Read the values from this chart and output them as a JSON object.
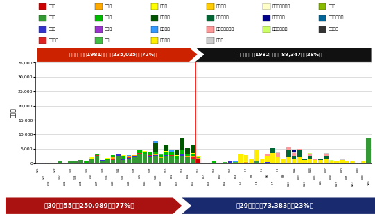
{
  "title_old": "旧耐震基準（1981年以前）235,025㎡（72%）",
  "title_new": "新耐震基準（1982年以降）89,347㎡（28%）",
  "bottom_old": "築30年～55年　250,989㎡（77%）",
  "bottom_new": "築29年以下　73,383㎡（23%）",
  "ylabel": "（㎡）",
  "ylim": 35000,
  "yticks": [
    0,
    5000,
    10000,
    15000,
    20000,
    25000,
    30000,
    35000
  ],
  "n_bars": 63,
  "separator_idx": 30,
  "colors": {
    "市庁舎": "#CC0000",
    "小学校": "#339933",
    "公民館": "#3333CC",
    "消防施設": "#DD2222",
    "保育所": "#FFAA00",
    "中学校": "#00BB00",
    "図書館": "#9933CC",
    "公園": "#44BB44",
    "幼稚園": "#FFFF00",
    "高等学校": "#005500",
    "市民会館": "#3399FF",
    "市営住宅": "#FFEE00",
    "こども園": "#FFCC00",
    "教育施設等": "#006633",
    "福祉・保健施設": "#FF9999",
    "その他": "#CCCCCC",
    "こどもセンター": "#FFFFCC",
    "青少年施設": "#000088",
    "スポーツ施設": "#CCFF66",
    "児童会": "#88BB00",
    "生涯学習施設": "#006699",
    "勤労会館": "#333333"
  },
  "legend_items": [
    [
      "市庁舎",
      "#CC0000"
    ],
    [
      "保育所",
      "#FFAA00"
    ],
    [
      "幼稚園",
      "#FFFF00"
    ],
    [
      "こども園",
      "#FFCC00"
    ],
    [
      "こどもセンター",
      "#FFFFCC"
    ],
    [
      "児童会",
      "#88BB00"
    ],
    [
      "小学校",
      "#339933"
    ],
    [
      "中学校",
      "#00BB00"
    ],
    [
      "高等学校",
      "#005500"
    ],
    [
      "教育施設等",
      "#006633"
    ],
    [
      "青少年施設",
      "#000088"
    ],
    [
      "生涯学習施設",
      "#006699"
    ],
    [
      "公民館",
      "#3333CC"
    ],
    [
      "図書館",
      "#9933CC"
    ],
    [
      "市民会館",
      "#3399FF"
    ],
    [
      "福祉・保健施設",
      "#FF9999"
    ],
    [
      "スポーツ施設",
      "#CCFF66"
    ],
    [
      "勤労会館",
      "#333333"
    ],
    [
      "消防施設",
      "#DD2222"
    ],
    [
      "公園",
      "#44BB44"
    ],
    [
      "市営住宅",
      "#FFEE00"
    ],
    [
      "その他",
      "#CCCCCC"
    ]
  ],
  "bar_data": {
    "市庁舎": [
      0,
      0,
      0,
      0,
      0,
      0,
      0,
      0,
      0,
      0,
      0,
      0,
      0,
      0,
      0,
      0,
      0,
      0,
      0,
      0,
      0,
      0,
      0,
      0,
      0,
      0,
      0,
      0,
      0,
      0,
      1500,
      0,
      0,
      0,
      0,
      0,
      0,
      0,
      0,
      0,
      0,
      0,
      0,
      0,
      0,
      0,
      0,
      0,
      0,
      0,
      0,
      0,
      0,
      0,
      0,
      0,
      0,
      0,
      0,
      0,
      0,
      0,
      0
    ],
    "小学校": [
      0,
      0,
      0,
      0,
      800,
      0,
      500,
      700,
      1000,
      0,
      1500,
      2500,
      800,
      1000,
      1200,
      2500,
      1200,
      1300,
      2000,
      3000,
      3000,
      2000,
      2500,
      1800,
      2200,
      2200,
      1500,
      2500,
      2000,
      1500,
      0,
      0,
      0,
      0,
      0,
      0,
      0,
      0,
      0,
      0,
      0,
      500,
      0,
      0,
      0,
      0,
      0,
      0,
      0,
      0,
      0,
      0,
      0,
      0,
      0,
      0,
      0,
      0,
      0,
      0,
      0,
      0,
      8500
    ],
    "公民館": [
      0,
      0,
      0,
      0,
      0,
      0,
      0,
      0,
      0,
      0,
      0,
      0,
      200,
      0,
      0,
      500,
      300,
      500,
      400,
      0,
      0,
      500,
      300,
      0,
      500,
      0,
      0,
      500,
      0,
      0,
      0,
      0,
      0,
      0,
      0,
      0,
      500,
      0,
      0,
      200,
      0,
      0,
      0,
      300,
      0,
      0,
      0,
      0,
      0,
      0,
      0,
      0,
      0,
      0,
      0,
      0,
      0,
      0,
      0,
      0,
      0,
      0,
      0
    ],
    "消防施設": [
      0,
      0,
      0,
      0,
      0,
      0,
      0,
      0,
      0,
      0,
      0,
      300,
      0,
      0,
      500,
      0,
      0,
      300,
      0,
      500,
      0,
      300,
      0,
      0,
      0,
      500,
      0,
      300,
      0,
      500,
      0,
      0,
      0,
      0,
      0,
      0,
      0,
      0,
      0,
      0,
      0,
      0,
      0,
      0,
      0,
      0,
      0,
      0,
      0,
      0,
      0,
      0,
      0,
      0,
      0,
      0,
      0,
      0,
      0,
      0,
      0,
      0,
      0
    ],
    "保育所": [
      0,
      200,
      200,
      0,
      0,
      200,
      0,
      200,
      0,
      200,
      200,
      0,
      200,
      0,
      300,
      0,
      0,
      200,
      300,
      0,
      200,
      0,
      300,
      200,
      0,
      200,
      200,
      0,
      300,
      200,
      300,
      200,
      0,
      0,
      100,
      200,
      0,
      200,
      0,
      200,
      0,
      0,
      200,
      0,
      100,
      0,
      200,
      0,
      0,
      0,
      0,
      0,
      0,
      0,
      100,
      0,
      0,
      0,
      0,
      0,
      0,
      0,
      0
    ],
    "中学校": [
      0,
      0,
      0,
      0,
      0,
      0,
      0,
      0,
      0,
      700,
      0,
      500,
      0,
      500,
      800,
      0,
      1000,
      0,
      0,
      1000,
      500,
      1000,
      1000,
      800,
      1000,
      1200,
      500,
      1200,
      800,
      1000,
      0,
      0,
      0,
      500,
      0,
      0,
      0,
      0,
      0,
      0,
      0,
      0,
      0,
      0,
      0,
      0,
      0,
      0,
      0,
      0,
      0,
      0,
      0,
      0,
      0,
      0,
      0,
      0,
      0,
      0,
      0,
      0,
      0
    ],
    "図書館": [
      0,
      0,
      0,
      0,
      0,
      0,
      0,
      0,
      0,
      0,
      0,
      0,
      0,
      0,
      0,
      0,
      0,
      0,
      0,
      0,
      0,
      0,
      0,
      0,
      0,
      0,
      0,
      0,
      0,
      0,
      0,
      0,
      0,
      0,
      0,
      0,
      0,
      0,
      0,
      0,
      0,
      0,
      0,
      0,
      0,
      0,
      0,
      0,
      0,
      0,
      0,
      0,
      0,
      0,
      0,
      0,
      0,
      0,
      0,
      0,
      0,
      0,
      0
    ],
    "公園": [
      0,
      0,
      0,
      0,
      0,
      0,
      0,
      0,
      0,
      0,
      0,
      0,
      0,
      0,
      0,
      0,
      0,
      0,
      0,
      0,
      200,
      0,
      0,
      200,
      200,
      0,
      200,
      0,
      200,
      0,
      200,
      0,
      0,
      0,
      0,
      200,
      0,
      200,
      0,
      0,
      0,
      0,
      0,
      0,
      0,
      0,
      0,
      0,
      0,
      0,
      0,
      0,
      0,
      0,
      0,
      0,
      0,
      0,
      0,
      0,
      0,
      0,
      0
    ],
    "幼稚園": [
      0,
      0,
      0,
      0,
      0,
      0,
      0,
      0,
      0,
      0,
      300,
      0,
      0,
      300,
      0,
      0,
      300,
      0,
      0,
      0,
      300,
      0,
      0,
      0,
      300,
      0,
      300,
      0,
      0,
      300,
      300,
      0,
      0,
      300,
      0,
      0,
      300,
      0,
      0,
      300,
      0,
      300,
      0,
      0,
      0,
      0,
      0,
      0,
      0,
      0,
      0,
      0,
      0,
      0,
      0,
      0,
      0,
      0,
      0,
      0,
      0,
      0,
      0
    ],
    "高等学校": [
      0,
      0,
      0,
      0,
      0,
      0,
      0,
      0,
      0,
      0,
      0,
      0,
      0,
      0,
      0,
      0,
      0,
      0,
      0,
      0,
      0,
      0,
      3000,
      0,
      2000,
      0,
      2000,
      4000,
      2000,
      3000,
      0,
      0,
      0,
      0,
      0,
      0,
      0,
      0,
      0,
      0,
      0,
      0,
      0,
      0,
      0,
      0,
      0,
      0,
      0,
      0,
      0,
      0,
      0,
      0,
      0,
      0,
      0,
      0,
      0,
      0,
      0,
      0,
      0
    ],
    "市民会館": [
      0,
      0,
      0,
      0,
      0,
      0,
      0,
      0,
      0,
      0,
      0,
      0,
      0,
      0,
      0,
      0,
      0,
      500,
      0,
      0,
      0,
      0,
      500,
      0,
      0,
      500,
      0,
      0,
      0,
      0,
      0,
      0,
      0,
      0,
      0,
      0,
      0,
      500,
      0,
      0,
      0,
      0,
      0,
      0,
      0,
      0,
      0,
      0,
      0,
      0,
      0,
      0,
      0,
      0,
      0,
      0,
      0,
      0,
      0,
      0,
      0,
      0,
      0
    ],
    "市営住宅": [
      0,
      0,
      0,
      0,
      0,
      0,
      0,
      0,
      0,
      0,
      0,
      0,
      0,
      0,
      0,
      0,
      0,
      0,
      0,
      0,
      0,
      0,
      0,
      0,
      0,
      0,
      0,
      0,
      0,
      0,
      0,
      0,
      0,
      0,
      0,
      0,
      0,
      0,
      3000,
      2000,
      1500,
      4000,
      1500,
      2000,
      3500,
      2000,
      1500,
      2000,
      1500,
      2000,
      1000,
      1500,
      1200,
      1000,
      1500,
      800,
      500,
      1000,
      500,
      800,
      200,
      500,
      0
    ],
    "こども園": [
      0,
      0,
      0,
      0,
      0,
      0,
      0,
      0,
      0,
      0,
      0,
      0,
      0,
      0,
      0,
      0,
      0,
      0,
      0,
      0,
      0,
      0,
      0,
      0,
      0,
      0,
      0,
      0,
      0,
      0,
      0,
      0,
      0,
      0,
      0,
      0,
      0,
      0,
      0,
      0,
      0,
      0,
      0,
      0,
      0,
      0,
      0,
      0,
      0,
      0,
      0,
      0,
      0,
      0,
      0,
      0,
      0,
      0,
      0,
      0,
      0,
      0,
      0
    ],
    "教育施設等": [
      0,
      0,
      0,
      0,
      0,
      0,
      0,
      0,
      0,
      0,
      0,
      0,
      0,
      0,
      0,
      0,
      0,
      0,
      0,
      0,
      0,
      0,
      0,
      0,
      0,
      0,
      0,
      0,
      0,
      0,
      0,
      0,
      0,
      0,
      0,
      0,
      0,
      0,
      0,
      0,
      0,
      0,
      0,
      0,
      1500,
      0,
      0,
      2500,
      1000,
      2500,
      500,
      1000,
      0,
      500,
      1000,
      0,
      0,
      0,
      0,
      0,
      0,
      0,
      0
    ],
    "福祉・保健施設": [
      0,
      0,
      0,
      0,
      0,
      0,
      0,
      0,
      0,
      0,
      0,
      0,
      0,
      0,
      0,
      0,
      0,
      0,
      0,
      0,
      0,
      0,
      0,
      0,
      0,
      0,
      0,
      0,
      0,
      0,
      0,
      0,
      0,
      0,
      0,
      0,
      0,
      0,
      0,
      0,
      0,
      0,
      0,
      1000,
      0,
      1500,
      0,
      1000,
      1000,
      500,
      0,
      500,
      500,
      0,
      500,
      0,
      200,
      0,
      0,
      0,
      0,
      0,
      0
    ],
    "その他": [
      0,
      0,
      0,
      0,
      0,
      0,
      0,
      0,
      0,
      0,
      0,
      0,
      0,
      0,
      0,
      0,
      0,
      0,
      0,
      0,
      0,
      0,
      0,
      0,
      0,
      0,
      0,
      0,
      0,
      0,
      0,
      0,
      0,
      0,
      0,
      0,
      0,
      0,
      0,
      0,
      0,
      0,
      0,
      0,
      0,
      500,
      0,
      0,
      500,
      0,
      0,
      0,
      0,
      0,
      300,
      0,
      0,
      500,
      0,
      0,
      0,
      0,
      0
    ],
    "こどもセンター": [
      0,
      0,
      0,
      0,
      0,
      0,
      0,
      0,
      0,
      0,
      0,
      0,
      0,
      0,
      0,
      0,
      0,
      0,
      0,
      0,
      0,
      0,
      0,
      0,
      0,
      0,
      0,
      0,
      0,
      0,
      0,
      0,
      0,
      0,
      0,
      0,
      0,
      0,
      0,
      0,
      0,
      0,
      0,
      0,
      0,
      0,
      0,
      0,
      0,
      0,
      0,
      0,
      0,
      0,
      0,
      0,
      0,
      0,
      0,
      0,
      0,
      0,
      0
    ],
    "青少年施設": [
      0,
      0,
      0,
      0,
      0,
      0,
      0,
      0,
      0,
      0,
      0,
      0,
      0,
      0,
      0,
      0,
      0,
      0,
      0,
      0,
      0,
      0,
      0,
      0,
      0,
      0,
      0,
      0,
      0,
      0,
      0,
      0,
      0,
      0,
      0,
      0,
      0,
      0,
      0,
      0,
      0,
      0,
      0,
      0,
      0,
      0,
      0,
      0,
      500,
      0,
      0,
      0,
      0,
      0,
      0,
      0,
      0,
      0,
      0,
      0,
      0,
      0,
      0
    ],
    "スポーツ施設": [
      0,
      0,
      0,
      0,
      0,
      0,
      0,
      0,
      0,
      0,
      0,
      0,
      0,
      0,
      0,
      0,
      0,
      0,
      0,
      0,
      0,
      0,
      0,
      0,
      0,
      0,
      0,
      0,
      0,
      0,
      0,
      0,
      0,
      0,
      0,
      0,
      0,
      0,
      0,
      0,
      0,
      0,
      0,
      0,
      0,
      0,
      0,
      0,
      0,
      0,
      0,
      500,
      0,
      0,
      0,
      300,
      0,
      0,
      0,
      0,
      0,
      0,
      0
    ],
    "児童会": [
      0,
      0,
      0,
      0,
      0,
      0,
      0,
      0,
      0,
      0,
      0,
      0,
      0,
      0,
      0,
      0,
      0,
      0,
      0,
      0,
      0,
      0,
      0,
      0,
      0,
      0,
      0,
      0,
      0,
      0,
      0,
      0,
      0,
      0,
      0,
      0,
      0,
      0,
      0,
      0,
      0,
      0,
      0,
      0,
      0,
      0,
      0,
      0,
      0,
      0,
      0,
      0,
      0,
      0,
      0,
      0,
      0,
      0,
      0,
      0,
      0,
      0,
      0
    ],
    "生涯学習施設": [
      0,
      0,
      0,
      0,
      0,
      0,
      0,
      0,
      0,
      0,
      0,
      0,
      0,
      0,
      0,
      0,
      0,
      0,
      0,
      0,
      0,
      0,
      0,
      0,
      0,
      0,
      0,
      0,
      0,
      0,
      0,
      0,
      0,
      0,
      0,
      0,
      0,
      0,
      0,
      0,
      0,
      0,
      0,
      0,
      0,
      0,
      0,
      0,
      0,
      0,
      0,
      0,
      0,
      0,
      0,
      0,
      0,
      0,
      0,
      0,
      0,
      0,
      0
    ],
    "勤労会館": [
      0,
      0,
      0,
      0,
      0,
      0,
      0,
      0,
      0,
      0,
      0,
      0,
      0,
      0,
      0,
      0,
      0,
      0,
      0,
      0,
      0,
      0,
      0,
      0,
      0,
      0,
      0,
      0,
      0,
      0,
      0,
      0,
      0,
      0,
      0,
      0,
      0,
      0,
      0,
      0,
      0,
      0,
      0,
      0,
      0,
      0,
      0,
      0,
      0,
      0,
      0,
      0,
      0,
      0,
      0,
      0,
      0,
      0,
      0,
      0,
      0,
      0,
      0
    ]
  }
}
